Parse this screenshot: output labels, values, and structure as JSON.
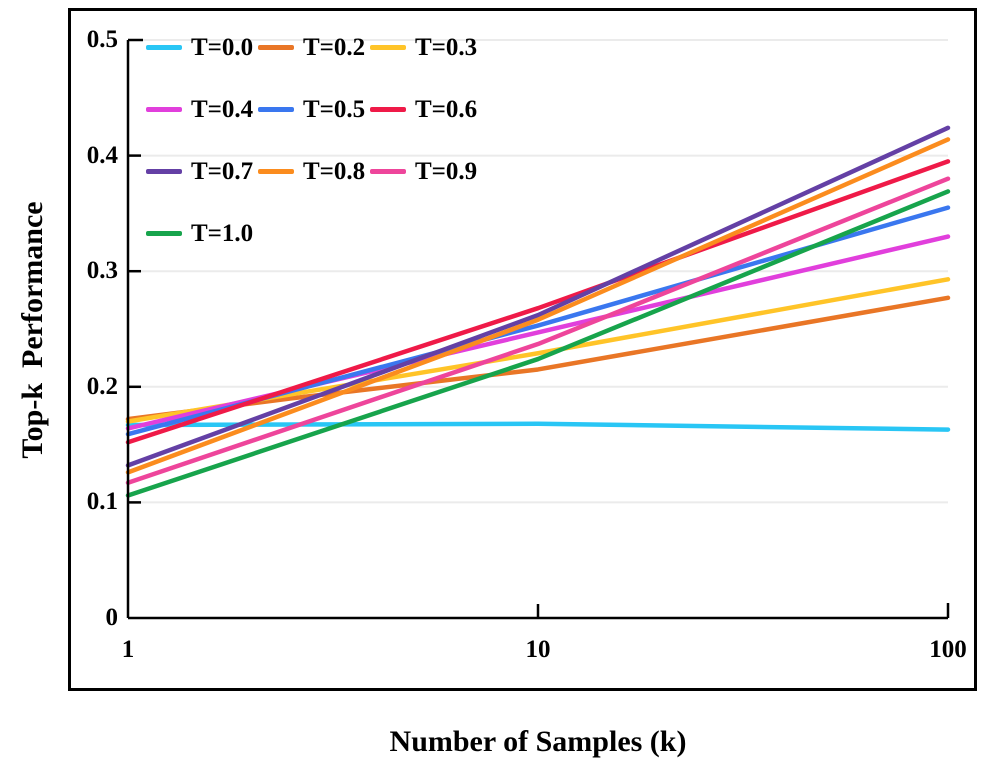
{
  "figure": {
    "y_axis_title": "Top-k  Performance",
    "x_axis_title": "Number of Samples (k)"
  },
  "axes": {
    "x": {
      "scale": "log",
      "range": [
        1,
        100
      ],
      "ticks": [
        {
          "label": "1",
          "k": 1
        },
        {
          "label": "10",
          "k": 10
        },
        {
          "label": "100",
          "k": 100
        }
      ]
    },
    "y": {
      "scale": "linear",
      "range": [
        0,
        0.5
      ],
      "ticks": [
        {
          "label": "0",
          "v": 0
        },
        {
          "label": "0.1",
          "v": 0.1
        },
        {
          "label": "0.2",
          "v": 0.2
        },
        {
          "label": "0.3",
          "v": 0.3
        },
        {
          "label": "0.4",
          "v": 0.4
        },
        {
          "label": "0.5",
          "v": 0.5
        }
      ]
    }
  },
  "chart_data": {
    "type": "line",
    "title": "",
    "xlabel": "Number of Samples (k)",
    "ylabel": "Top-k Performance",
    "x_scale": "log",
    "xlim": [
      1,
      100
    ],
    "ylim": [
      0,
      0.5
    ],
    "grid": "horizontal-light-gray",
    "legend_position": "top-left-inside",
    "series": [
      {
        "name": "T=0.0",
        "color": "#29C6F5",
        "k": [
          1,
          10,
          100
        ],
        "values": [
          0.167,
          0.168,
          0.163
        ]
      },
      {
        "name": "T=0.2",
        "color": "#E97626",
        "k": [
          1,
          2.5,
          10,
          100
        ],
        "values": [
          0.172,
          0.19,
          0.215,
          0.277
        ]
      },
      {
        "name": "T=0.3",
        "color": "#FFC428",
        "k": [
          1,
          10,
          100
        ],
        "values": [
          0.17,
          0.229,
          0.293
        ]
      },
      {
        "name": "T=0.4",
        "color": "#E13FDC",
        "k": [
          1,
          10,
          100
        ],
        "values": [
          0.164,
          0.247,
          0.33
        ]
      },
      {
        "name": "T=0.5",
        "color": "#3A77EF",
        "k": [
          1,
          10,
          100
        ],
        "values": [
          0.159,
          0.253,
          0.355
        ]
      },
      {
        "name": "T=0.6",
        "color": "#EF1A48",
        "k": [
          1,
          10,
          100
        ],
        "values": [
          0.152,
          0.268,
          0.395
        ]
      },
      {
        "name": "T=0.7",
        "color": "#6440A5",
        "k": [
          1,
          10,
          100
        ],
        "values": [
          0.132,
          0.262,
          0.424
        ]
      },
      {
        "name": "T=0.8",
        "color": "#FB8C1E",
        "k": [
          1,
          10,
          100
        ],
        "values": [
          0.126,
          0.258,
          0.414
        ]
      },
      {
        "name": "T=0.9",
        "color": "#EE459B",
        "k": [
          1,
          10,
          100
        ],
        "values": [
          0.117,
          0.237,
          0.38
        ]
      },
      {
        "name": "T=1.0",
        "color": "#17A44C",
        "k": [
          1,
          10,
          100
        ],
        "values": [
          0.106,
          0.224,
          0.369
        ]
      }
    ]
  }
}
